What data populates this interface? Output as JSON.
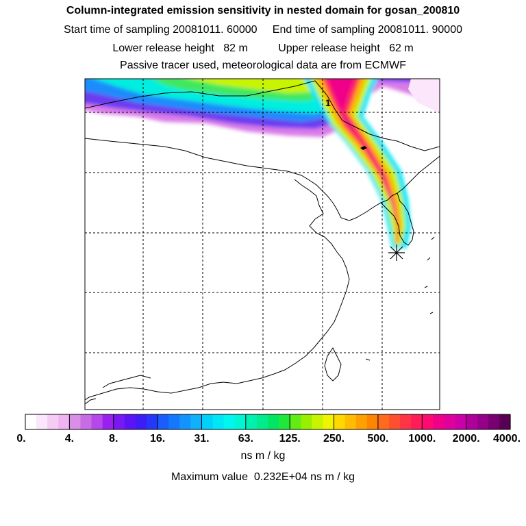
{
  "header": {
    "title": "Column-integrated emission sensitivity in nested domain for gosan_200810",
    "sampling": "Start time of sampling 20081011. 60000     End time of sampling 20081011. 90000",
    "release": "Lower release height   82 m          Upper release height   62 m",
    "tracer": "Passive tracer used, meteorological data are from ECMWF"
  },
  "map": {
    "release_point_marker": "star-icon",
    "trajectory_label": "1",
    "colors": {
      "coastline": "#000000",
      "grid": "#000000"
    }
  },
  "colorbar": {
    "labels": [
      "0.",
      "4.",
      "8.",
      "16.",
      "31.",
      "63.",
      "125.",
      "250.",
      "500.",
      "1000.",
      "2000.",
      "4000."
    ],
    "colors": [
      "#ffffff",
      "#fbe6fb",
      "#f4ccf4",
      "#eeb3f0",
      "#d98ee8",
      "#c86ce6",
      "#b448e8",
      "#9a20f0",
      "#7a18f4",
      "#5a14f6",
      "#3e1cf8",
      "#2438fa",
      "#1a5cfc",
      "#1478fc",
      "#1294fc",
      "#10b0fc",
      "#00d0fa",
      "#00e6f6",
      "#00f6ee",
      "#00f6d2",
      "#00f0b0",
      "#00ec8c",
      "#00e664",
      "#20e83a",
      "#60ec14",
      "#98f000",
      "#c8f400",
      "#f0f400",
      "#ffd800",
      "#ffbc00",
      "#ffa000",
      "#ff8400",
      "#ff6a1c",
      "#ff4e30",
      "#ff3444",
      "#ff1c58",
      "#ff0a70",
      "#f00088",
      "#e0009c",
      "#cc00a8",
      "#b0009c",
      "#940088",
      "#780070",
      "#5a0054"
    ],
    "units": "ns m / kg",
    "maximum": "Maximum value  0.232E+04 ns m / kg"
  }
}
